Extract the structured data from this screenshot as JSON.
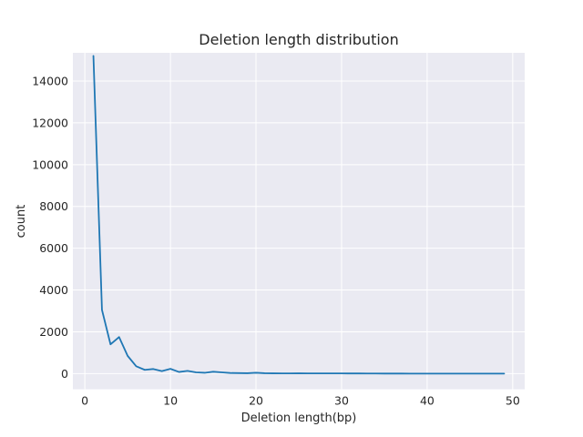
{
  "chart_data": {
    "type": "line",
    "title": "Deletion length distribution",
    "xlabel": "Deletion length(bp)",
    "ylabel": "count",
    "xlim": [
      -1.4,
      51.4
    ],
    "ylim": [
      -750,
      15350
    ],
    "xticks": [
      0,
      10,
      20,
      30,
      40,
      50
    ],
    "yticks": [
      0,
      2000,
      4000,
      6000,
      8000,
      10000,
      12000,
      14000
    ],
    "grid": true,
    "series": [
      {
        "color": "#1f77b4",
        "x": [
          1,
          2,
          3,
          4,
          5,
          6,
          7,
          8,
          9,
          10,
          11,
          12,
          13,
          14,
          15,
          16,
          17,
          18,
          19,
          20,
          21,
          22,
          23,
          24,
          25,
          26,
          27,
          28,
          29,
          30,
          31,
          32,
          33,
          34,
          35,
          36,
          37,
          38,
          39,
          40,
          41,
          42,
          43,
          44,
          45,
          46,
          47,
          48,
          49
        ],
        "y": [
          15200,
          3050,
          1400,
          1750,
          850,
          350,
          180,
          220,
          120,
          230,
          80,
          130,
          60,
          40,
          90,
          60,
          30,
          25,
          20,
          40,
          20,
          15,
          10,
          10,
          15,
          10,
          10,
          12,
          10,
          10,
          8,
          8,
          6,
          5,
          4,
          3,
          3,
          2,
          2,
          2,
          1,
          1,
          1,
          1,
          1,
          1,
          1,
          1,
          1
        ]
      }
    ]
  }
}
